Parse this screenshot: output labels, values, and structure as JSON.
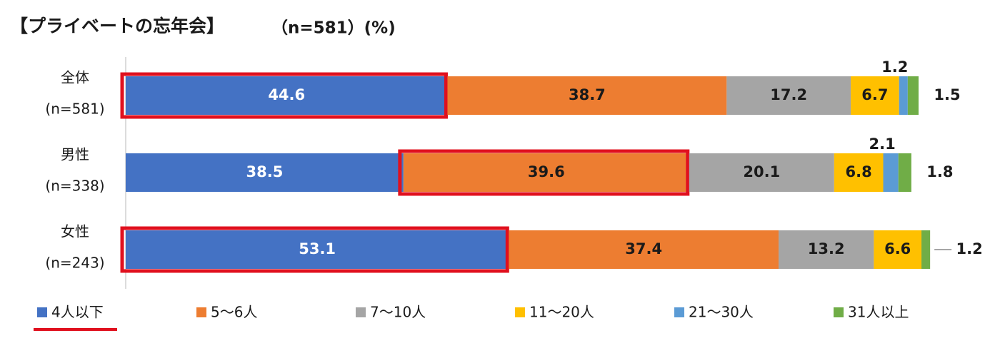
{
  "chart_data": {
    "type": "stacked-barh",
    "title": "【プライベートの忘年会】",
    "subtitle": "（n=581）(%)",
    "categories": [
      "全体",
      "男性",
      "女性"
    ],
    "category_notes": [
      "(n=581)",
      "(n=338)",
      "(n=243)"
    ],
    "series": [
      {
        "name": "4人以下",
        "color": "#4472c4",
        "values": [
          44.6,
          38.5,
          53.1
        ]
      },
      {
        "name": "5〜6人",
        "color": "#ed7d31",
        "values": [
          38.7,
          39.6,
          37.4
        ]
      },
      {
        "name": "7〜10人",
        "color": "#a5a5a5",
        "values": [
          17.2,
          20.1,
          13.2
        ]
      },
      {
        "name": "11〜20人",
        "color": "#ffc000",
        "values": [
          6.7,
          6.8,
          6.6
        ]
      },
      {
        "name": "21〜30人",
        "color": "#5b9bd5",
        "values": [
          1.2,
          2.1,
          0
        ]
      },
      {
        "name": "31人以上",
        "color": "#70ad47",
        "values": [
          1.5,
          1.8,
          1.2
        ]
      }
    ],
    "highlight_series": [
      0,
      1,
      0
    ],
    "highlight_legend": 0,
    "leader_line": [
      false,
      false,
      true
    ]
  }
}
